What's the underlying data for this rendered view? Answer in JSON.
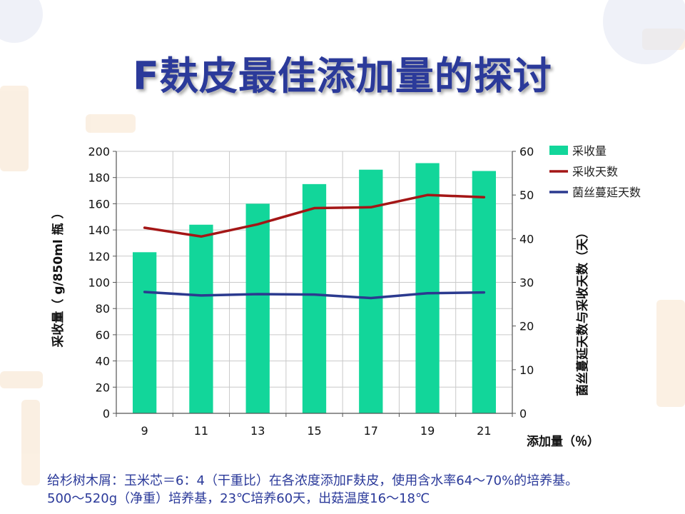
{
  "slide": {
    "title": "F麸皮最佳添加量的探讨",
    "footnote_line1": "给杉树木屑：玉米芯＝6：4（干重比）在各浓度添加F麸皮，使用含水率64～70%的培养基。",
    "footnote_line2": "500～520g（净重）培养基，23℃培养60天，出菇温度16～18℃"
  },
  "colors": {
    "bar": "#12d69a",
    "harvest_days_line": "#a41616",
    "mycelium_days_line": "#2b3a8f",
    "title": "#2b3a9a",
    "footnote": "#2b3a9a"
  },
  "chart_data": {
    "type": "bar",
    "title": "",
    "categories": [
      "9",
      "11",
      "13",
      "15",
      "17",
      "19",
      "21"
    ],
    "xlabel": "添加量（％）",
    "ylabel": "采收量（ g/850ml 瓶 ）",
    "ylabel_right": "菌丝蔓延天数与采收天数（天）",
    "ylim": [
      0,
      200
    ],
    "yticks": [
      0,
      20,
      40,
      60,
      80,
      100,
      120,
      140,
      160,
      180,
      200
    ],
    "y2lim": [
      0,
      60
    ],
    "y2ticks": [
      0,
      10,
      20,
      30,
      40,
      50,
      60
    ],
    "grid": true,
    "legend_position": "top-right",
    "series": [
      {
        "name": "采收量",
        "kind": "bar",
        "axis": "left",
        "values": [
          123,
          144,
          160,
          175,
          186,
          191,
          185
        ]
      },
      {
        "name": "采收天数",
        "kind": "line",
        "axis": "right",
        "values": [
          42.5,
          40.5,
          43.3,
          47.0,
          47.2,
          50.0,
          49.5
        ]
      },
      {
        "name": "菌丝蔓延天数",
        "kind": "line",
        "axis": "right",
        "values": [
          27.8,
          27.0,
          27.3,
          27.2,
          26.4,
          27.5,
          27.7
        ]
      }
    ]
  }
}
